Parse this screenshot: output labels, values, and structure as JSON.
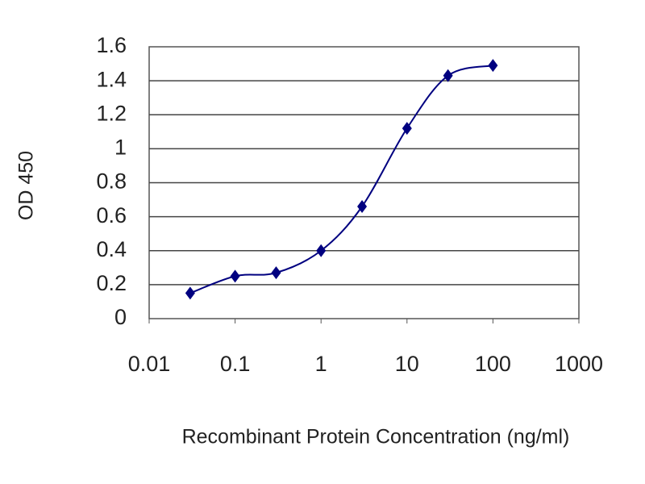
{
  "chart_data": {
    "type": "line",
    "y_label": "OD 450",
    "x_label": "Recombinant Protein Concentration (ng/ml)",
    "x": [
      0.03,
      0.1,
      0.3,
      1,
      3,
      10,
      30,
      100
    ],
    "values": [
      0.15,
      0.25,
      0.27,
      0.4,
      0.66,
      1.12,
      1.43,
      1.49
    ],
    "color": "#000080",
    "xscale": "log",
    "xlim": [
      0.01,
      1000
    ],
    "xticks": [
      0.01,
      0.1,
      1,
      10,
      100,
      1000
    ],
    "ylim": [
      0,
      1.6
    ],
    "yticks": [
      0,
      0.2,
      0.4,
      0.6,
      0.8,
      1,
      1.2,
      1.4,
      1.6
    ],
    "grid": true
  }
}
